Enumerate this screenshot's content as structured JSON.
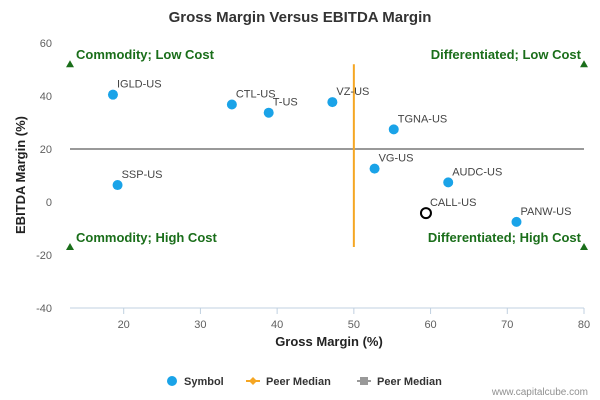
{
  "chart_data": {
    "type": "scatter",
    "title": "Gross Margin Versus EBITDA Margin",
    "xlabel": "Gross Margin (%)",
    "ylabel": "EBITDA Margin (%)",
    "xlim": [
      13,
      80
    ],
    "ylim": [
      -40,
      60
    ],
    "x_ticks": [
      20,
      30,
      40,
      50,
      60,
      70,
      80
    ],
    "y_ticks": [
      -40,
      -20,
      0,
      20,
      40,
      60
    ],
    "grid": false,
    "legend_position": "bottom",
    "colors": {
      "symbol": "#1aa3e8",
      "peer_x": "#f5a623",
      "peer_y": "#999999",
      "quadrant": "#1a6e1a"
    },
    "points": [
      {
        "label": "IGLD-US",
        "x": 18.6,
        "y": 40.5,
        "highlight": false
      },
      {
        "label": "CTL-US",
        "x": 34.1,
        "y": 36.8,
        "highlight": false
      },
      {
        "label": "T-US",
        "x": 38.9,
        "y": 33.7,
        "highlight": false
      },
      {
        "label": "VZ-US",
        "x": 47.2,
        "y": 37.7,
        "highlight": false
      },
      {
        "label": "TGNA-US",
        "x": 55.2,
        "y": 27.4,
        "highlight": false
      },
      {
        "label": "VG-US",
        "x": 52.7,
        "y": 12.6,
        "highlight": false
      },
      {
        "label": "SSP-US",
        "x": 19.2,
        "y": 6.4,
        "highlight": false
      },
      {
        "label": "AUDC-US",
        "x": 62.3,
        "y": 7.4,
        "highlight": false
      },
      {
        "label": "CALL-US",
        "x": 59.4,
        "y": -4.2,
        "highlight": true
      },
      {
        "label": "PANW-US",
        "x": 71.2,
        "y": -7.5,
        "highlight": false
      }
    ],
    "peer_median": {
      "x": 50,
      "y": 20
    },
    "peer_median_x_extent": [
      -17,
      52
    ],
    "peer_median_y_extent": [
      13,
      80
    ],
    "quadrants": [
      {
        "label": "Commodity; Low Cost",
        "x": 13,
        "y": 52,
        "align": "left",
        "marker": "up"
      },
      {
        "label": "Differentiated; Low Cost",
        "x": 80,
        "y": 52,
        "align": "right",
        "marker": "up"
      },
      {
        "label": "Commodity; High Cost",
        "x": 13,
        "y": -17,
        "align": "left",
        "marker": "up"
      },
      {
        "label": "Differentiated; High Cost",
        "x": 80,
        "y": -17,
        "align": "right",
        "marker": "up"
      }
    ],
    "legend": [
      {
        "label": "Symbol",
        "kind": "circle"
      },
      {
        "label": "Peer Median",
        "kind": "line-diamond",
        "color_key": "peer_x"
      },
      {
        "label": "Peer Median",
        "kind": "line-square",
        "color_key": "peer_y"
      }
    ]
  },
  "credit": "www.capitalcube.com"
}
